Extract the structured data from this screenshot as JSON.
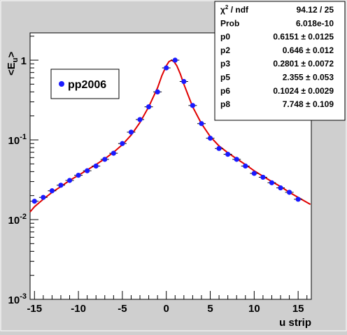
{
  "chart_data": {
    "type": "scatter",
    "xlabel": "u strip",
    "ylabel_main": "<E",
    "ylabel_sub": "u",
    "ylabel_end": ">",
    "xlim": [
      -15.5,
      16.5
    ],
    "ylim": [
      0.001,
      2.2
    ],
    "yscale": "log",
    "grid": false,
    "legend_position": "top-left",
    "x_ticks": [
      {
        "value": -15,
        "label": "-15"
      },
      {
        "value": -10,
        "label": "-10"
      },
      {
        "value": -5,
        "label": "-5"
      },
      {
        "value": 0,
        "label": "0"
      },
      {
        "value": 5,
        "label": "5"
      },
      {
        "value": 10,
        "label": "10"
      },
      {
        "value": 15,
        "label": "15"
      }
    ],
    "y_ticks": [
      {
        "value": 1,
        "base": "1",
        "exp": ""
      },
      {
        "value": 0.1,
        "base": "10",
        "exp": "-1"
      },
      {
        "value": 0.01,
        "base": "10",
        "exp": "-2"
      },
      {
        "value": 0.001,
        "base": "10",
        "exp": "-3"
      }
    ],
    "series": [
      {
        "name": "pp2006",
        "color": "#1a1aff",
        "marker": "circle",
        "x": [
          -15,
          -14,
          -13,
          -12,
          -11,
          -10,
          -9,
          -8,
          -7,
          -6,
          -5,
          -4,
          -3,
          -2,
          -1,
          0,
          1,
          2,
          3,
          4,
          5,
          6,
          7,
          8,
          9,
          10,
          11,
          12,
          13,
          14,
          15
        ],
        "y": [
          0.017,
          0.019,
          0.023,
          0.027,
          0.031,
          0.036,
          0.041,
          0.047,
          0.057,
          0.068,
          0.09,
          0.125,
          0.18,
          0.26,
          0.4,
          0.8,
          1.0,
          0.54,
          0.27,
          0.16,
          0.105,
          0.078,
          0.066,
          0.057,
          0.047,
          0.038,
          0.034,
          0.029,
          0.025,
          0.022,
          0.018
        ]
      }
    ],
    "fit_curve": {
      "color": "#e00000",
      "points": [
        [
          -15.5,
          0.0125
        ],
        [
          -15,
          0.0145
        ],
        [
          -14,
          0.018
        ],
        [
          -13,
          0.022
        ],
        [
          -12,
          0.026
        ],
        [
          -11,
          0.031
        ],
        [
          -10,
          0.036
        ],
        [
          -9,
          0.042
        ],
        [
          -8,
          0.049
        ],
        [
          -7,
          0.058
        ],
        [
          -6,
          0.07
        ],
        [
          -5,
          0.087
        ],
        [
          -4,
          0.115
        ],
        [
          -3,
          0.165
        ],
        [
          -2,
          0.26
        ],
        [
          -1,
          0.45
        ],
        [
          -0.5,
          0.64
        ],
        [
          0,
          0.85
        ],
        [
          0.3,
          0.96
        ],
        [
          0.6,
          1.0
        ],
        [
          0.9,
          0.95
        ],
        [
          1.2,
          0.85
        ],
        [
          1.6,
          0.67
        ],
        [
          2,
          0.5
        ],
        [
          2.5,
          0.36
        ],
        [
          3,
          0.26
        ],
        [
          4,
          0.16
        ],
        [
          5,
          0.11
        ],
        [
          6,
          0.084
        ],
        [
          7,
          0.069
        ],
        [
          8,
          0.058
        ],
        [
          9,
          0.049
        ],
        [
          10,
          0.041
        ],
        [
          11,
          0.035
        ],
        [
          12,
          0.03
        ],
        [
          13,
          0.026
        ],
        [
          14,
          0.022
        ],
        [
          15,
          0.019
        ],
        [
          16.4,
          0.0155
        ]
      ]
    },
    "stats_box": {
      "rows": [
        {
          "label_html": "χ<tspan baseline-shift='super' font-size='9'>2</tspan> / ndf",
          "label": "χ2 / ndf",
          "value": "94.12 / 25"
        },
        {
          "label": "Prob",
          "value": "6.018e-10"
        },
        {
          "label": "p0",
          "value": "0.6151 ± 0.0125"
        },
        {
          "label": "p2",
          "value": "0.646 ± 0.012"
        },
        {
          "label": "p3",
          "value": "0.2801 ± 0.0072"
        },
        {
          "label": "p5",
          "value": "2.355 ± 0.053"
        },
        {
          "label": "p6",
          "value": "0.1024 ± 0.0029"
        },
        {
          "label": "p8",
          "value": "7.748 ± 0.109"
        }
      ]
    }
  }
}
